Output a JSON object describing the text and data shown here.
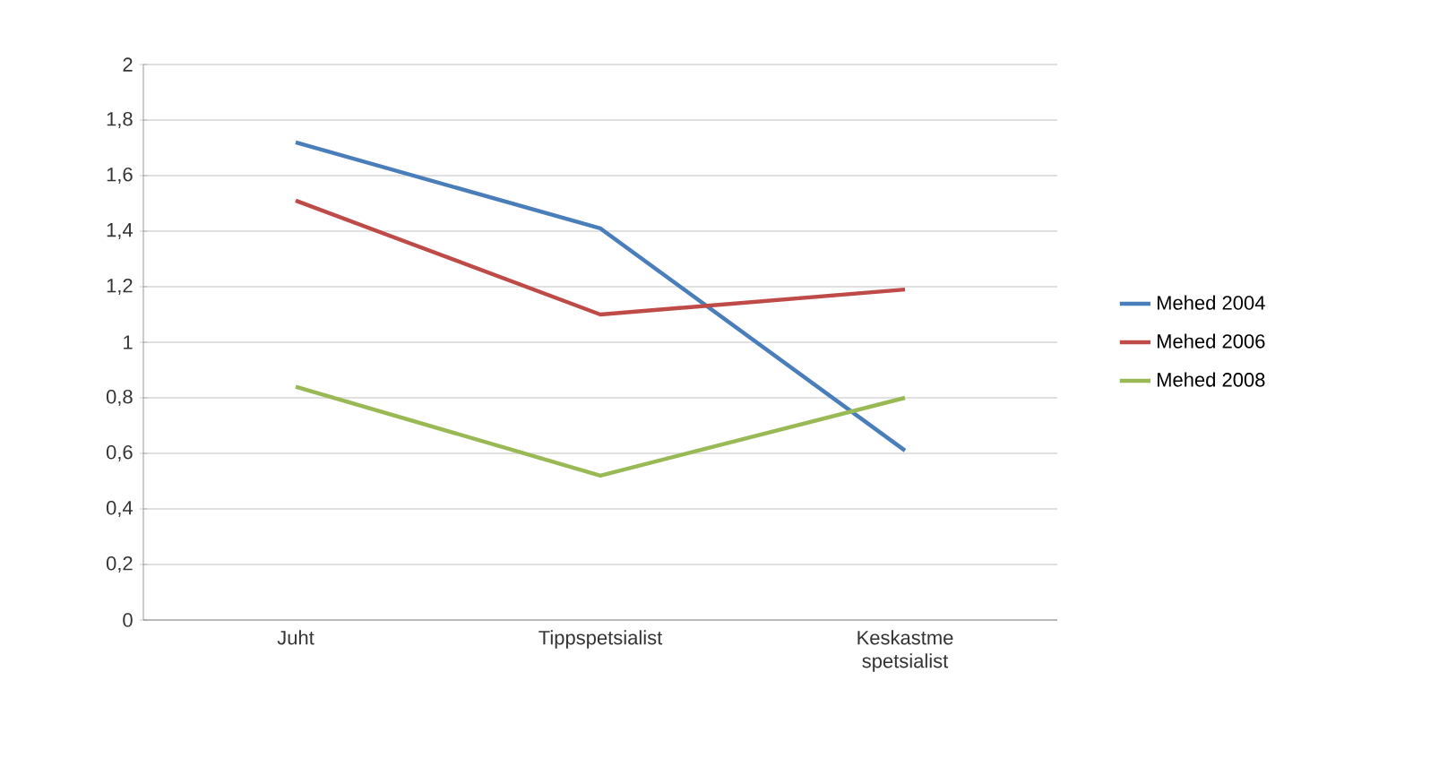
{
  "chart_data": {
    "type": "line",
    "categories": [
      "Juht",
      "Tippspetsialist",
      "Keskastme spetsialist"
    ],
    "series": [
      {
        "name": "Mehed 2004",
        "color": "#4a7ebb",
        "values": [
          1.72,
          1.41,
          0.61
        ]
      },
      {
        "name": "Mehed 2006",
        "color": "#be4b48",
        "values": [
          1.51,
          1.1,
          1.19
        ]
      },
      {
        "name": "Mehed 2008",
        "color": "#98b954",
        "values": [
          0.84,
          0.52,
          0.8
        ]
      }
    ],
    "ylim": [
      0,
      2
    ],
    "yticks": [
      0,
      {
        "value": 0.2,
        "label": "0,2"
      },
      {
        "value": 0.4,
        "label": "0,4"
      },
      {
        "value": 0.6,
        "label": "0,6"
      },
      {
        "value": 0.8,
        "label": "0,8"
      },
      1,
      {
        "value": 1.2,
        "label": "1,2"
      },
      {
        "value": 1.4,
        "label": "1,4"
      },
      {
        "value": 1.6,
        "label": "1,6"
      },
      {
        "value": 1.8,
        "label": "1,8"
      },
      2
    ],
    "grid": "y",
    "legend": "right"
  }
}
